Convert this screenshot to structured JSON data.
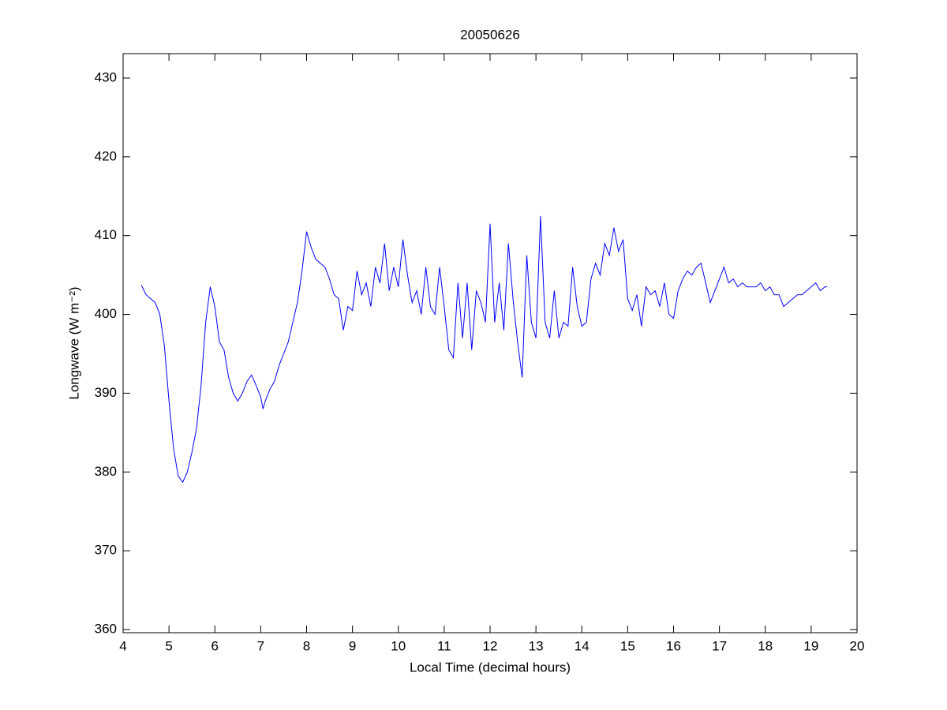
{
  "chart_data": {
    "type": "line",
    "title": "20050626",
    "xlabel": "Local Time (decimal hours)",
    "ylabel": "Longwave (W m⁻²)",
    "x": [
      4.4,
      4.5,
      4.6,
      4.7,
      4.8,
      4.9,
      5.0,
      5.1,
      5.2,
      5.3,
      5.4,
      5.5,
      5.6,
      5.7,
      5.8,
      5.9,
      6.0,
      6.1,
      6.2,
      6.3,
      6.4,
      6.5,
      6.6,
      6.7,
      6.8,
      6.9,
      7.0,
      7.05,
      7.1,
      7.2,
      7.3,
      7.4,
      7.5,
      7.6,
      7.7,
      7.8,
      7.9,
      8.0,
      8.1,
      8.2,
      8.3,
      8.4,
      8.5,
      8.6,
      8.7,
      8.8,
      8.9,
      9.0,
      9.1,
      9.2,
      9.3,
      9.4,
      9.5,
      9.6,
      9.7,
      9.8,
      9.9,
      10.0,
      10.1,
      10.2,
      10.3,
      10.4,
      10.5,
      10.6,
      10.7,
      10.8,
      10.9,
      11.0,
      11.1,
      11.2,
      11.3,
      11.4,
      11.5,
      11.6,
      11.7,
      11.8,
      11.9,
      12.0,
      12.1,
      12.2,
      12.3,
      12.4,
      12.5,
      12.6,
      12.7,
      12.8,
      12.9,
      13.0,
      13.1,
      13.2,
      13.3,
      13.4,
      13.5,
      13.6,
      13.7,
      13.8,
      13.9,
      14.0,
      14.1,
      14.2,
      14.3,
      14.4,
      14.5,
      14.6,
      14.7,
      14.8,
      14.9,
      15.0,
      15.1,
      15.2,
      15.3,
      15.4,
      15.5,
      15.6,
      15.7,
      15.8,
      15.9,
      16.0,
      16.1,
      16.2,
      16.3,
      16.4,
      16.5,
      16.6,
      16.7,
      16.8,
      16.9,
      17.0,
      17.1,
      17.2,
      17.3,
      17.4,
      17.5,
      17.6,
      17.7,
      17.8,
      17.9,
      18.0,
      18.1,
      18.2,
      18.3,
      18.4,
      18.5,
      18.6,
      18.7,
      18.8,
      18.9,
      19.0,
      19.1,
      19.2,
      19.3,
      19.35
    ],
    "series": [
      {
        "color": "#0000ff",
        "values": [
          403.7,
          402.5,
          402,
          401.5,
          400,
          396,
          389,
          383,
          379.5,
          378.7,
          380,
          382.5,
          385.5,
          391,
          399,
          403.5,
          401,
          396.5,
          395.5,
          392,
          390,
          389,
          390,
          391.5,
          392.3,
          391,
          389.5,
          388,
          389,
          390.5,
          391.5,
          393.5,
          395,
          396.5,
          399,
          401.5,
          405.5,
          410.5,
          408.5,
          407,
          406.5,
          406,
          404.5,
          402.5,
          402,
          398,
          401,
          400.5,
          405.5,
          402.5,
          404,
          401,
          406,
          404,
          409,
          403,
          406,
          403.5,
          409.5,
          405,
          401.5,
          403,
          400,
          406,
          401,
          400,
          406,
          401,
          395.5,
          394.5,
          404,
          397,
          404,
          395.5,
          403,
          401.5,
          399,
          411.5,
          399,
          404,
          398,
          409,
          402,
          396.5,
          392,
          407.5,
          399,
          397,
          412.5,
          399,
          397,
          403,
          397,
          399,
          398.5,
          406,
          401,
          398.5,
          399,
          404.5,
          406.5,
          405,
          409,
          407.5,
          411,
          408,
          409.5,
          402,
          400.5,
          402.5,
          398.5,
          403.5,
          402.5,
          403,
          401,
          404,
          400,
          399.5,
          403,
          404.5,
          405.5,
          405,
          406,
          406.5,
          404,
          401.5,
          403,
          404.5,
          406,
          404,
          404.5,
          403.5,
          404,
          403.5,
          403.5,
          403.5,
          404,
          403,
          403.5,
          402.5,
          402.5,
          401,
          401.5,
          402,
          402.5,
          402.5,
          403,
          403.5,
          404,
          403,
          403.5,
          403.5
        ]
      }
    ],
    "xlim": [
      4,
      20
    ],
    "xticks": [
      4,
      5,
      6,
      7,
      8,
      9,
      10,
      11,
      12,
      13,
      14,
      15,
      16,
      17,
      18,
      19,
      20
    ],
    "ylim": [
      359.6,
      433.1
    ],
    "yticks": [
      360,
      370,
      380,
      390,
      400,
      410,
      420,
      430
    ]
  }
}
